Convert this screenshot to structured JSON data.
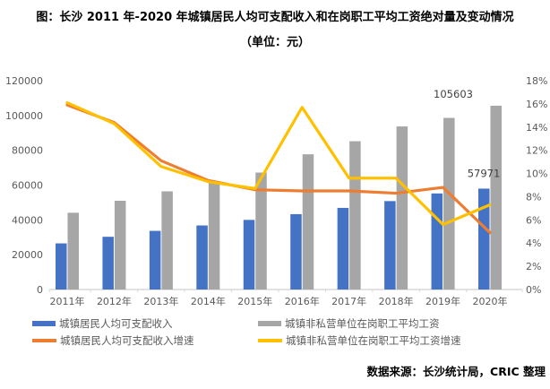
{
  "title": {
    "line1": "图：长沙 2011 年-2020 年城镇居民人均可支配收入和在岗职工平均工资绝对量及变动情况",
    "line2": "（单位：元）"
  },
  "source": "数据来源：长沙统计局，CRIC 整理",
  "colors": {
    "income_bar": "#4472C4",
    "wage_bar": "#A6A6A6",
    "income_growth_line": "#ED7D31",
    "wage_growth_line": "#FFC000",
    "axis_text": "#595959",
    "axis_line": "#D9D9D9",
    "data_label": "#404040"
  },
  "legend": {
    "items": [
      {
        "label": "城镇居民人均可支配收入",
        "marker": "bar",
        "color": "#4472C4"
      },
      {
        "label": "城镇非私营单位在岗职工平均工资",
        "marker": "bar",
        "color": "#A6A6A6"
      },
      {
        "label": "城镇居民人均可支配收入增速",
        "marker": "line",
        "color": "#ED7D31"
      },
      {
        "label": "城镇非私营单位在岗职工平均工资增速",
        "marker": "line",
        "color": "#FFC000"
      }
    ]
  },
  "chart_data": {
    "type": "combo-bar-line",
    "title": "图：长沙 2011 年-2020 年城镇居民人均可支配收入和在岗职工平均工资绝对量及变动情况",
    "subtitle": "（单位：元）",
    "categories": [
      "2011年",
      "2012年",
      "2013年",
      "2014年",
      "2015年",
      "2016年",
      "2017年",
      "2018年",
      "2019年",
      "2020年"
    ],
    "bar_series": [
      {
        "name": "城镇居民人均可支配收入",
        "color": "#4472C4",
        "axis": "left",
        "values": [
          26500,
          30300,
          33700,
          36800,
          40000,
          43300,
          46900,
          50800,
          55200,
          57971
        ]
      },
      {
        "name": "城镇非私营单位在岗职工平均工资",
        "color": "#A6A6A6",
        "axis": "left",
        "values": [
          44100,
          51000,
          56400,
          61300,
          67200,
          77700,
          85200,
          93700,
          98600,
          105603
        ]
      }
    ],
    "line_series": [
      {
        "name": "城镇居民人均可支配收入增速",
        "color": "#ED7D31",
        "axis": "right",
        "unit": "%",
        "values": [
          15.9,
          14.4,
          11.1,
          9.4,
          8.6,
          8.5,
          8.5,
          8.3,
          8.8,
          4.9
        ]
      },
      {
        "name": "城镇非私营单位在岗职工平均工资增速",
        "color": "#FFC000",
        "axis": "right",
        "unit": "%",
        "values": [
          16.1,
          14.3,
          10.6,
          9.3,
          8.7,
          15.7,
          9.6,
          9.6,
          5.6,
          7.3
        ]
      }
    ],
    "left_axis": {
      "min": 0,
      "max": 120000,
      "step": 20000,
      "tick_labels": [
        "0",
        "20000",
        "40000",
        "60000",
        "80000",
        "100000",
        "120000"
      ]
    },
    "right_axis": {
      "min": 0,
      "max": 18,
      "step": 2,
      "tick_labels": [
        "0%",
        "2%",
        "4%",
        "6%",
        "8%",
        "10%",
        "12%",
        "14%",
        "16%",
        "18%"
      ]
    },
    "data_labels": [
      {
        "series": "城镇非私营单位在岗职工平均工资",
        "category": "2020年",
        "text": "105603"
      },
      {
        "series": "城镇居民人均可支配收入",
        "category": "2020年",
        "text": "57971"
      }
    ],
    "grid": false,
    "legend_position": "bottom"
  }
}
